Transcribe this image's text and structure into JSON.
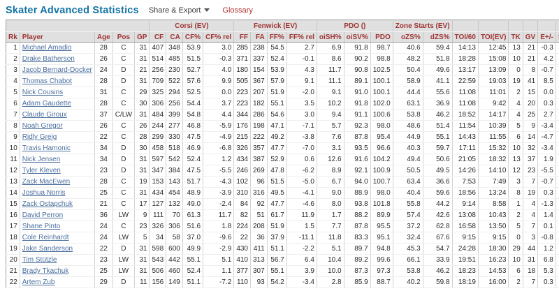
{
  "page": {
    "title": "Skater Advanced Statistics"
  },
  "toolbar": {
    "share_export_label": "Share & Export",
    "glossary_label": "Glossary"
  },
  "colors": {
    "title_teal": "#1373a4",
    "header_text_red": "#9e3433",
    "header_bg_gray": "#e0e0e0",
    "player_link_blue": "#4a6f9e",
    "glossary_red": "#b23530"
  },
  "table": {
    "group_headers": [
      {
        "label": "",
        "colspan": 5
      },
      {
        "label": "Corsi (EV)",
        "colspan": 4
      },
      {
        "label": "Fenwick (EV)",
        "colspan": 4
      },
      {
        "label": "PDO ()",
        "colspan": 3
      },
      {
        "label": "Zone Starts (EV)",
        "colspan": 2
      },
      {
        "label": "",
        "colspan": 1
      },
      {
        "label": "",
        "colspan": 1
      },
      {
        "label": "",
        "colspan": 1
      },
      {
        "label": "",
        "colspan": 1
      },
      {
        "label": "",
        "colspan": 1
      },
      {
        "label": "",
        "colspan": 1
      },
      {
        "label": "",
        "colspan": 1
      }
    ],
    "columns": [
      "Rk",
      "Player",
      "Age",
      "Pos",
      "GP",
      "CF",
      "CA",
      "CF%",
      "CF% rel",
      "FF",
      "FA",
      "FF%",
      "FF% rel",
      "oiSH%",
      "oiSV%",
      "PDO",
      "oZS%",
      "dZS%",
      "TOI/60",
      "TOI(EV)",
      "TK",
      "GV",
      "E+/-",
      "SAtt.",
      "Thru%"
    ],
    "rows": [
      [
        "1",
        "Michael Amadio",
        "28",
        "C",
        "31",
        "407",
        "348",
        "53.9",
        "3.0",
        "285",
        "238",
        "54.5",
        "2.7",
        "6.9",
        "91.8",
        "98.7",
        "40.6",
        "59.4",
        "14:13",
        "12:45",
        "13",
        "21",
        "-0.3",
        "79",
        "49.4"
      ],
      [
        "2",
        "Drake Batherson",
        "26",
        "C",
        "31",
        "514",
        "485",
        "51.5",
        "-0.3",
        "371",
        "337",
        "52.4",
        "-0.1",
        "8.6",
        "90.2",
        "98.8",
        "48.2",
        "51.8",
        "18:28",
        "15:08",
        "10",
        "21",
        "4.2",
        "133",
        "51.9"
      ],
      [
        "3",
        "Jacob Bernard-Docker",
        "24",
        "D",
        "21",
        "256",
        "230",
        "52.7",
        "4.0",
        "180",
        "154",
        "53.9",
        "4.3",
        "11.7",
        "90.8",
        "102.5",
        "50.4",
        "49.6",
        "13:17",
        "13:09",
        "0",
        "8",
        "-0.7",
        "51",
        "33.3"
      ],
      [
        "4",
        "Thomas Chabot",
        "28",
        "D",
        "31",
        "709",
        "522",
        "57.6",
        "9.9",
        "505",
        "367",
        "57.9",
        "9.1",
        "11.1",
        "89.1",
        "100.1",
        "58.9",
        "41.1",
        "22:59",
        "19:03",
        "19",
        "41",
        "8.5",
        "181",
        "40.3"
      ],
      [
        "5",
        "Nick Cousins",
        "31",
        "C",
        "29",
        "325",
        "294",
        "52.5",
        "0.0",
        "223",
        "207",
        "51.9",
        "-2.0",
        "9.1",
        "91.0",
        "100.1",
        "44.4",
        "55.6",
        "11:08",
        "11:01",
        "2",
        "15",
        "0.0",
        "75",
        "58.7"
      ],
      [
        "6",
        "Adam Gaudette",
        "28",
        "C",
        "30",
        "306",
        "256",
        "54.4",
        "3.7",
        "223",
        "182",
        "55.1",
        "3.5",
        "10.2",
        "91.8",
        "102.0",
        "63.1",
        "36.9",
        "11:08",
        "9:42",
        "4",
        "20",
        "0.3",
        "71",
        "56.3"
      ],
      [
        "7",
        "Claude Giroux",
        "37",
        "C/LW",
        "31",
        "484",
        "399",
        "54.8",
        "4.4",
        "344",
        "286",
        "54.6",
        "3.0",
        "9.4",
        "91.1",
        "100.6",
        "53.8",
        "46.2",
        "18:52",
        "14:17",
        "4",
        "25",
        "2.7",
        "95",
        "61.1"
      ],
      [
        "8",
        "Noah Gregor",
        "26",
        "C",
        "26",
        "244",
        "277",
        "46.8",
        "-5.9",
        "176",
        "198",
        "47.1",
        "-7.1",
        "5.7",
        "92.3",
        "98.0",
        "48.6",
        "51.4",
        "11:54",
        "10:39",
        "5",
        "9",
        "-3.4",
        "92",
        "40.2"
      ],
      [
        "9",
        "Ridly Greig",
        "22",
        "C",
        "28",
        "299",
        "330",
        "47.5",
        "-4.9",
        "215",
        "222",
        "49.2",
        "-3.8",
        "7.6",
        "87.8",
        "95.4",
        "44.9",
        "55.1",
        "14:43",
        "11:55",
        "6",
        "14",
        "-4.7",
        "63",
        "54.0"
      ],
      [
        "10",
        "Travis Hamonic",
        "34",
        "D",
        "30",
        "458",
        "518",
        "46.9",
        "-6.8",
        "326",
        "357",
        "47.7",
        "-7.0",
        "3.1",
        "93.5",
        "96.6",
        "40.3",
        "59.7",
        "17:11",
        "15:32",
        "10",
        "32",
        "-3.4",
        "91",
        "39.6"
      ],
      [
        "11",
        "Nick Jensen",
        "34",
        "D",
        "31",
        "597",
        "542",
        "52.4",
        "1.2",
        "434",
        "387",
        "52.9",
        "0.6",
        "12.6",
        "91.6",
        "104.2",
        "49.4",
        "50.6",
        "21:05",
        "18:32",
        "13",
        "37",
        "1.9",
        "102",
        "38.2"
      ],
      [
        "12",
        "Tyler Kleven",
        "23",
        "D",
        "31",
        "347",
        "384",
        "47.5",
        "-5.5",
        "246",
        "269",
        "47.8",
        "-6.2",
        "8.9",
        "92.1",
        "100.9",
        "50.5",
        "49.5",
        "14:26",
        "14:10",
        "12",
        "23",
        "-5.5",
        "70",
        "40.0"
      ],
      [
        "13",
        "Zack MacEwen",
        "28",
        "C",
        "19",
        "153",
        "143",
        "51.7",
        "-4.3",
        "102",
        "96",
        "51.5",
        "-5.0",
        "6.7",
        "94.0",
        "100.7",
        "63.4",
        "36.6",
        "7:53",
        "7:49",
        "3",
        "7",
        "-0.7",
        "43",
        "53.5"
      ],
      [
        "14",
        "Joshua Norris",
        "25",
        "C",
        "31",
        "434",
        "454",
        "48.9",
        "-3.9",
        "310",
        "316",
        "49.5",
        "-4.1",
        "9.0",
        "88.9",
        "98.0",
        "40.4",
        "59.6",
        "18:56",
        "13:24",
        "8",
        "19",
        "0.3",
        "115",
        "56.5"
      ],
      [
        "15",
        "Zack Ostapchuk",
        "21",
        "C",
        "17",
        "127",
        "132",
        "49.0",
        "-2.4",
        "84",
        "92",
        "47.7",
        "-4.6",
        "8.0",
        "93.8",
        "101.8",
        "55.8",
        "44.2",
        "9:14",
        "8:58",
        "1",
        "4",
        "-1.3",
        "11",
        "45.5"
      ],
      [
        "16",
        "David Perron",
        "36",
        "LW",
        "9",
        "111",
        "70",
        "61.3",
        "11.7",
        "82",
        "51",
        "61.7",
        "11.9",
        "1.7",
        "88.2",
        "89.9",
        "57.4",
        "42.6",
        "13:08",
        "10:43",
        "2",
        "4",
        "1.4",
        "39",
        "64.1"
      ],
      [
        "17",
        "Shane Pinto",
        "24",
        "C",
        "23",
        "326",
        "306",
        "51.6",
        "1.8",
        "224",
        "208",
        "51.9",
        "1.5",
        "7.7",
        "87.8",
        "95.5",
        "37.2",
        "62.8",
        "16:58",
        "13:50",
        "5",
        "7",
        "0.1",
        "79",
        "50.6"
      ],
      [
        "18",
        "Cole Reinhardt",
        "24",
        "LW",
        "5",
        "34",
        "58",
        "37.0",
        "-9.6",
        "22",
        "36",
        "37.9",
        "-11.1",
        "11.8",
        "83.3",
        "95.1",
        "32.4",
        "67.6",
        "9:15",
        "9:15",
        "0",
        "3",
        "-0.8",
        "10",
        "70.0"
      ],
      [
        "19",
        "Jake Sanderson",
        "22",
        "D",
        "31",
        "598",
        "600",
        "49.9",
        "-2.9",
        "430",
        "411",
        "51.1",
        "-2.2",
        "5.1",
        "89.7",
        "94.8",
        "45.3",
        "54.7",
        "24:28",
        "18:30",
        "29",
        "44",
        "1.2",
        "138",
        "46.4"
      ],
      [
        "20",
        "Tim Stützle",
        "23",
        "LW",
        "31",
        "543",
        "442",
        "55.1",
        "5.1",
        "410",
        "313",
        "56.7",
        "6.4",
        "10.4",
        "89.2",
        "99.6",
        "66.1",
        "33.9",
        "19:51",
        "16:23",
        "10",
        "31",
        "6.8",
        "121",
        "52.1"
      ],
      [
        "21",
        "Brady Tkachuk",
        "25",
        "LW",
        "31",
        "506",
        "460",
        "52.4",
        "1.1",
        "377",
        "307",
        "55.1",
        "3.9",
        "10.0",
        "87.3",
        "97.3",
        "53.8",
        "46.2",
        "18:23",
        "14:53",
        "6",
        "18",
        "5.3",
        "229",
        "56.8"
      ],
      [
        "22",
        "Artem Zub",
        "29",
        "D",
        "11",
        "156",
        "149",
        "51.1",
        "-7.2",
        "110",
        "93",
        "54.2",
        "-3.4",
        "2.8",
        "85.9",
        "88.7",
        "40.2",
        "59.8",
        "18:19",
        "16:00",
        "2",
        "7",
        "0.3",
        "31",
        "41.9"
      ]
    ]
  }
}
